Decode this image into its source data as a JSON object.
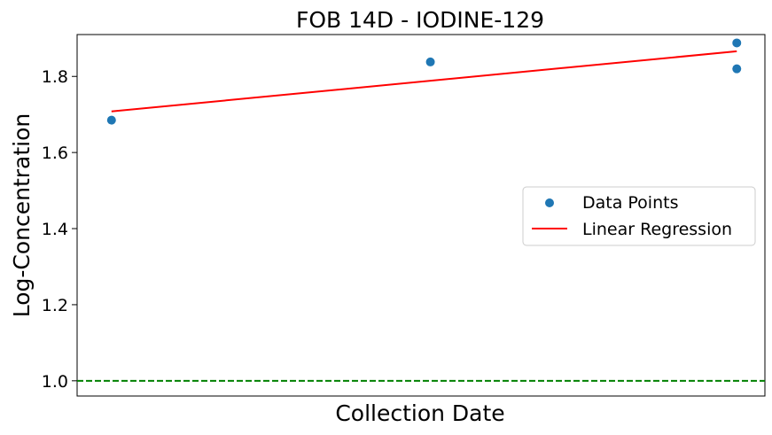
{
  "chart_data": {
    "type": "scatter",
    "title": "FOB 14D - IODINE-129",
    "xlabel": "Collection Date",
    "ylabel": "Log-Concentration",
    "x_tick_labels_visible": false,
    "ylim": [
      0.96,
      1.91
    ],
    "yticks": [
      1.0,
      1.2,
      1.4,
      1.6,
      1.8
    ],
    "ytick_labels": [
      "1.0",
      "1.2",
      "1.4",
      "1.6",
      "1.8"
    ],
    "xlim": [
      -0.055,
      1.045
    ],
    "grid": false,
    "legend": {
      "placement": "center-right",
      "entries": [
        "Data Points",
        "Linear Regression"
      ]
    },
    "series": [
      {
        "name": "Data Points",
        "kind": "scatter",
        "color": "#1f77b4",
        "points": [
          {
            "x": 0.0,
            "y": 1.685
          },
          {
            "x": 0.51,
            "y": 1.838
          },
          {
            "x": 1.0,
            "y": 1.888
          },
          {
            "x": 1.0,
            "y": 1.82
          }
        ]
      },
      {
        "name": "Linear Regression",
        "kind": "line",
        "color": "#ff0000",
        "points": [
          {
            "x": 0.0,
            "y": 1.708
          },
          {
            "x": 1.0,
            "y": 1.866
          }
        ]
      }
    ],
    "reference_line": {
      "y": 1.0,
      "color": "#008000",
      "style": "dashed"
    }
  }
}
